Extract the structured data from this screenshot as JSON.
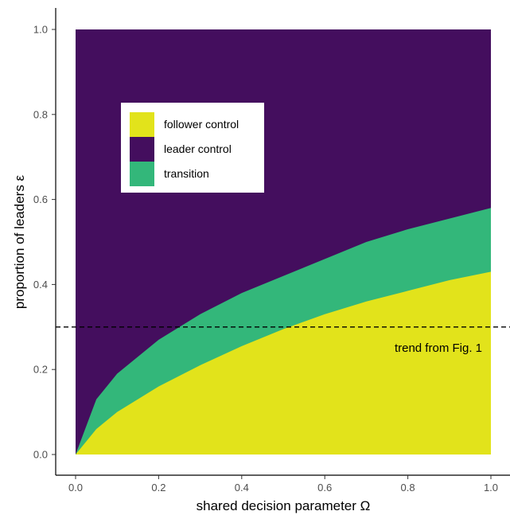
{
  "chart_data": {
    "type": "area",
    "title": "",
    "xlabel": "shared decision parameter Ω",
    "ylabel": "proportion of leaders ε",
    "xlim": [
      0,
      1
    ],
    "ylim": [
      0,
      1
    ],
    "x_ticks": [
      0.0,
      0.2,
      0.4,
      0.6,
      0.8,
      1.0
    ],
    "y_ticks": [
      0.0,
      0.2,
      0.4,
      0.6,
      0.8,
      1.0
    ],
    "x_tick_labels": [
      "0.0",
      "0.2",
      "0.4",
      "0.6",
      "0.8",
      "1.0"
    ],
    "y_tick_labels": [
      "0.0",
      "0.2",
      "0.4",
      "0.6",
      "0.8",
      "1.0"
    ],
    "grid": false,
    "legend_position": "upper-left inside plot",
    "series": [
      {
        "name": "follower control",
        "color": "#e2e31b",
        "region": "below lower boundary",
        "boundary": {
          "x": [
            0,
            0.05,
            0.1,
            0.2,
            0.3,
            0.4,
            0.5,
            0.6,
            0.7,
            0.8,
            0.9,
            1.0
          ],
          "y": [
            0,
            0.06,
            0.1,
            0.16,
            0.21,
            0.255,
            0.295,
            0.33,
            0.36,
            0.385,
            0.41,
            0.43
          ]
        }
      },
      {
        "name": "leader control",
        "color": "#440e5e",
        "region": "above upper boundary",
        "boundary": {
          "x": [
            0,
            0.05,
            0.1,
            0.2,
            0.3,
            0.4,
            0.5,
            0.6,
            0.7,
            0.8,
            0.9,
            1.0
          ],
          "y": [
            0,
            0.13,
            0.19,
            0.27,
            0.33,
            0.38,
            0.42,
            0.46,
            0.5,
            0.53,
            0.555,
            0.58
          ]
        }
      },
      {
        "name": "transition",
        "color": "#33b77a",
        "region": "between boundaries"
      }
    ],
    "reference_line": {
      "y": 0.3,
      "style": "dashed",
      "label": "trend from Fig. 1"
    }
  }
}
